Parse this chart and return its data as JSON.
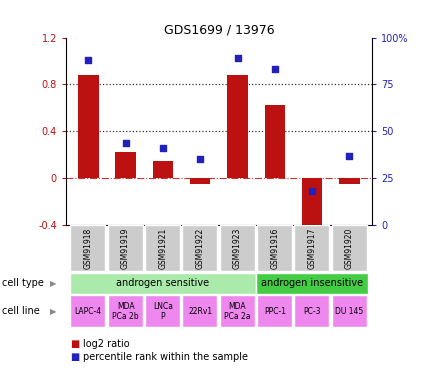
{
  "title": "GDS1699 / 13976",
  "samples": [
    "GSM91918",
    "GSM91919",
    "GSM91921",
    "GSM91922",
    "GSM91923",
    "GSM91916",
    "GSM91917",
    "GSM91920"
  ],
  "log2_ratio": [
    0.88,
    0.22,
    0.15,
    -0.05,
    0.88,
    0.62,
    -0.45,
    -0.05
  ],
  "percentile_rank": [
    88,
    44,
    41,
    35,
    89,
    83,
    18,
    37
  ],
  "bar_color": "#bb1111",
  "dot_color": "#2222bb",
  "ylim_left": [
    -0.4,
    1.2
  ],
  "ylim_right": [
    0,
    100
  ],
  "yticks_left": [
    -0.4,
    0.0,
    0.4,
    0.8,
    1.2
  ],
  "yticks_right": [
    0,
    25,
    50,
    75,
    100
  ],
  "ytick_labels_left": [
    "-0.4",
    "0",
    "0.4",
    "0.8",
    "1.2"
  ],
  "ytick_labels_right": [
    "0",
    "25",
    "50",
    "75",
    "100%"
  ],
  "hlines_dotted": [
    0.4,
    0.8
  ],
  "zero_line_color": "#cc3333",
  "hline_color": "#333333",
  "cell_type_groups": [
    {
      "label": "androgen sensitive",
      "start": 0,
      "end": 5,
      "color": "#aaeaaa"
    },
    {
      "label": "androgen insensitive",
      "start": 5,
      "end": 8,
      "color": "#44cc44"
    }
  ],
  "cell_lines": [
    "LAPC-4",
    "MDA\nPCa 2b",
    "LNCa\nP",
    "22Rv1",
    "MDA\nPCa 2a",
    "PPC-1",
    "PC-3",
    "DU 145"
  ],
  "cell_line_color": "#ee88ee",
  "sample_bg_color": "#cccccc",
  "cell_type_label": "cell type",
  "cell_line_label": "cell line",
  "legend_log2_label": "log2 ratio",
  "legend_pct_label": "percentile rank within the sample",
  "bar_width": 0.55
}
